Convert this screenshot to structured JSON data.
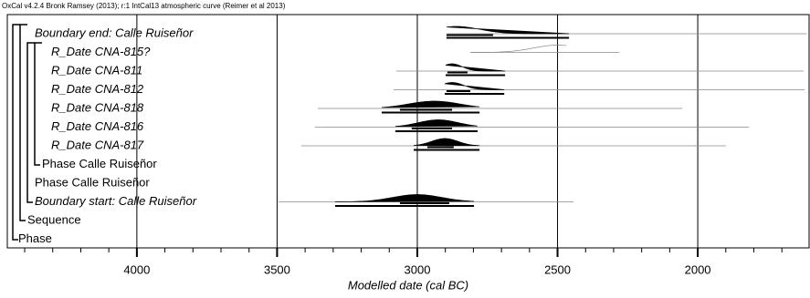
{
  "chart_data": {
    "type": "oxcal",
    "header": "OxCal v4.2.4 Bronk Ramsey (2013); r:1 IntCal13 atmospheric curve (Reimer et al 2013)",
    "xlabel": "Modelled date (cal BC)",
    "xlim": [
      4462,
      1603
    ],
    "xticks": [
      4000,
      3500,
      3000,
      2500,
      2000
    ],
    "xminorticks": [
      4400,
      4300,
      4200,
      4100,
      3900,
      3800,
      3700,
      3600,
      3400,
      3300,
      3200,
      3100,
      2900,
      2800,
      2700,
      2600,
      2400,
      2300,
      2200,
      2100,
      1900,
      1800,
      1700
    ],
    "grid": true,
    "color": "#000000",
    "rows": [
      {
        "label": "Boundary end: Calle Ruiseñor",
        "italic": true,
        "modelled": true,
        "peak": 2860,
        "range68": [
          2896,
          2730
        ],
        "range95": [
          2896,
          2459
        ],
        "span": [
          2895,
          1612
        ]
      },
      {
        "label": "R_Date CNA-815?",
        "italic": true,
        "modelled": false,
        "peak": 2500,
        "range95": [
          2810,
          2469
        ],
        "span": [
          2810,
          2280
        ]
      },
      {
        "label": "R_Date CNA-811",
        "italic": true,
        "modelled": true,
        "peak": 2876,
        "range68": [
          2893,
          2821
        ],
        "range95": [
          2899,
          2687
        ],
        "span": [
          3075,
          1622
        ]
      },
      {
        "label": "R_Date CNA-812",
        "italic": true,
        "modelled": true,
        "peak": 2876,
        "range68": [
          2896,
          2811
        ],
        "range95": [
          2902,
          2690
        ],
        "span": [
          3085,
          1619
        ]
      },
      {
        "label": "R_Date CNA-818",
        "italic": true,
        "modelled": true,
        "peak": 2940,
        "range68": [
          3062,
          2876
        ],
        "range95": [
          3127,
          2778
        ],
        "span": [
          3355,
          2055
        ]
      },
      {
        "label": "R_Date CNA-816",
        "italic": true,
        "modelled": true,
        "peak": 2925,
        "range68": [
          3020,
          2876
        ],
        "range95": [
          3078,
          2785
        ],
        "span": [
          3365,
          1817
        ]
      },
      {
        "label": "R_Date CNA-817",
        "italic": true,
        "modelled": true,
        "peak": 2902,
        "range68": [
          2964,
          2870
        ],
        "range95": [
          3013,
          2778
        ],
        "span": [
          3414,
          1899
        ]
      },
      {
        "label": "Phase Calle Ruiseñor",
        "italic": false
      },
      {
        "label": "Phase Calle Ruiseñor",
        "italic": false
      },
      {
        "label": "Boundary start: Calle Ruiseñor",
        "italic": true,
        "modelled": true,
        "peak": 3000,
        "range68": [
          3062,
          2886
        ],
        "range95": [
          3293,
          2798
        ],
        "span": [
          3495,
          2443
        ]
      },
      {
        "label": "Sequence",
        "italic": false
      },
      {
        "label": "Phase",
        "italic": false
      }
    ]
  }
}
